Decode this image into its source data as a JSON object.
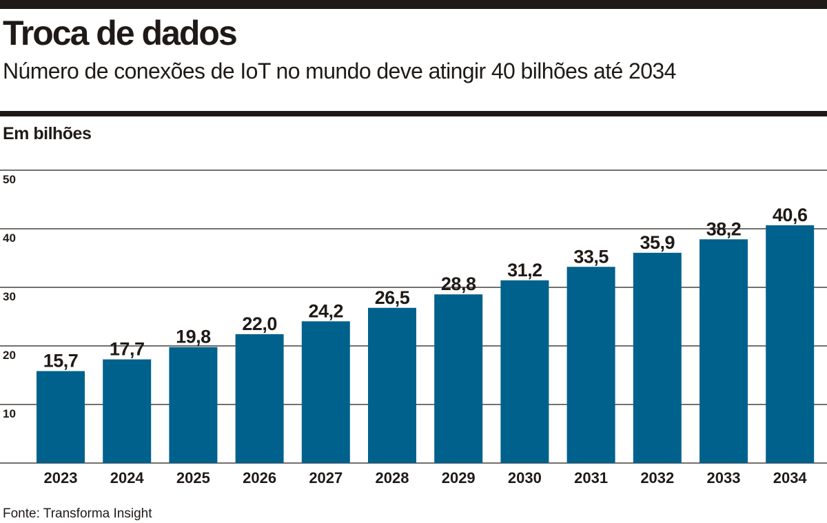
{
  "header": {
    "title": "Troca de dados",
    "subtitle": "Número de conexões de IoT no mundo deve atingir 40 bilhões até 2034",
    "unit_label": "Em bilhões"
  },
  "footer": {
    "source": "Fonte: Transforma Insight"
  },
  "colors": {
    "bar": "#00618c",
    "gridline": "#1f1a17",
    "text": "#1f1a17"
  },
  "chart_data": {
    "type": "bar",
    "title": "Troca de dados",
    "subtitle": "Número de conexões de IoT no mundo deve atingir 40 bilhões até 2034",
    "xlabel": "",
    "ylabel": "Em bilhões",
    "categories": [
      "2023",
      "2024",
      "2025",
      "2026",
      "2027",
      "2028",
      "2029",
      "2030",
      "2031",
      "2032",
      "2033",
      "2034"
    ],
    "values": [
      15.7,
      17.7,
      19.8,
      22.0,
      24.2,
      26.5,
      28.8,
      31.2,
      33.5,
      35.9,
      38.2,
      40.6
    ],
    "value_labels": [
      "15,7",
      "17,7",
      "19,8",
      "22,0",
      "24,2",
      "26,5",
      "28,8",
      "31,2",
      "33,5",
      "35,9",
      "38,2",
      "40,6"
    ],
    "yticks": [
      10,
      20,
      30,
      40,
      50
    ],
    "ylim": [
      0,
      50
    ],
    "grid": true,
    "legend": "none",
    "source": "Fonte: Transforma Insight"
  }
}
